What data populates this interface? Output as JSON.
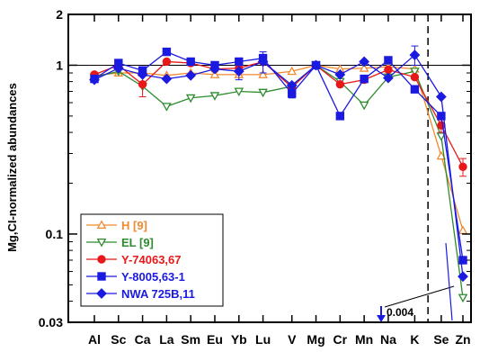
{
  "chart_data": {
    "type": "line",
    "title": "",
    "xlabel": "",
    "ylabel": "Mg,CI-normalized abundances",
    "yscale": "log",
    "ylim": [
      0.03,
      2
    ],
    "ytick_labels": [
      "0.03",
      "0.1",
      "1",
      "2"
    ],
    "yticks": [
      0.03,
      0.1,
      1,
      2
    ],
    "categories": [
      "Al",
      "Sc",
      "Ca",
      "La",
      "Sm",
      "Eu",
      "Yb",
      "Lu",
      "V",
      "Mg",
      "Cr",
      "Mn",
      "Na",
      "K",
      "Se",
      "Zn"
    ],
    "category_positions": [
      0,
      1,
      2,
      3,
      4,
      5,
      6,
      7,
      8.2,
      9.2,
      10.2,
      11.2,
      12.2,
      13.3,
      14.4,
      15.3
    ],
    "reference_line": 1,
    "vertical_divider_after": "K",
    "legend_position": "bottom-left",
    "series": [
      {
        "name": "H [9]",
        "color": "#f08a30",
        "marker": "triangle-up-open",
        "x": [
          0,
          1,
          2,
          3,
          4,
          5,
          6,
          7,
          8.2,
          9.2,
          10.2,
          11.2,
          12.2,
          13.3,
          14.4,
          15.3
        ],
        "values": [
          0.87,
          0.9,
          0.9,
          0.87,
          0.9,
          0.88,
          0.88,
          0.88,
          0.92,
          1.0,
          0.95,
          0.96,
          0.98,
          0.95,
          0.29,
          0.105
        ]
      },
      {
        "name": "EL [9]",
        "color": "#2e8b2e",
        "marker": "triangle-down-open",
        "x": [
          0,
          1,
          2,
          3,
          4,
          5,
          6,
          7,
          8.2,
          9.2,
          10.2,
          11.2,
          12.2,
          13.3,
          14.4,
          15.3
        ],
        "values": [
          0.85,
          0.92,
          0.75,
          0.57,
          0.64,
          0.66,
          0.7,
          0.69,
          0.75,
          1.0,
          0.8,
          0.58,
          0.85,
          0.92,
          0.38,
          0.042
        ]
      },
      {
        "name": "Y-74063,67",
        "color": "#e81818",
        "marker": "circle-filled",
        "x": [
          0,
          1,
          2,
          3,
          4,
          5,
          6,
          7,
          8.2,
          9.2,
          10.2,
          11.2,
          12.2,
          13.3,
          14.4,
          15.3
        ],
        "values": [
          0.88,
          1.0,
          0.77,
          1.05,
          1.03,
          0.95,
          0.96,
          1.05,
          0.74,
          1.0,
          0.77,
          0.82,
          0.94,
          0.85,
          0.44,
          0.25
        ],
        "errors": [
          0,
          0,
          0.12,
          0,
          0,
          0,
          0,
          0,
          0,
          0,
          0,
          0,
          0,
          0,
          0.04,
          0.03
        ]
      },
      {
        "name": "Y-8005,63-1",
        "color": "#1a1ae0",
        "marker": "square-filled",
        "x": [
          0,
          1,
          2,
          3,
          4,
          5,
          6,
          7,
          8.2,
          9.2,
          10.2,
          11.2,
          12.2,
          13.3,
          14.4,
          15.3
        ],
        "values": [
          0.83,
          1.03,
          0.93,
          1.2,
          1.05,
          1.0,
          1.05,
          1.1,
          0.68,
          1.0,
          0.5,
          0.83,
          1.07,
          0.72,
          0.5,
          0.07
        ],
        "errors": [
          0,
          0,
          0.05,
          0.05,
          0,
          0,
          0,
          0.06,
          0.04,
          0,
          0,
          0,
          0,
          0,
          0,
          0
        ]
      },
      {
        "name": "NWA 725B,11",
        "color": "#1a1ae0",
        "marker": "diamond-filled",
        "x": [
          0,
          1,
          2,
          3,
          4,
          5,
          6,
          7,
          8.2,
          9.2,
          10.2,
          11.2,
          12.2,
          13.3,
          14.4,
          15.3
        ],
        "values": [
          0.82,
          0.96,
          0.88,
          0.83,
          0.87,
          0.95,
          0.92,
          1.05,
          0.76,
          1.0,
          0.88,
          1.05,
          0.84,
          1.15,
          0.65,
          0.056
        ],
        "errors": [
          0,
          0,
          0,
          0,
          0,
          0,
          0.1,
          0.15,
          0,
          0,
          0,
          0,
          0,
          0.15,
          0,
          0
        ]
      }
    ],
    "annotation": {
      "text": "0.004",
      "arrow": "down",
      "arrow_color": "#1a1ae0"
    }
  }
}
